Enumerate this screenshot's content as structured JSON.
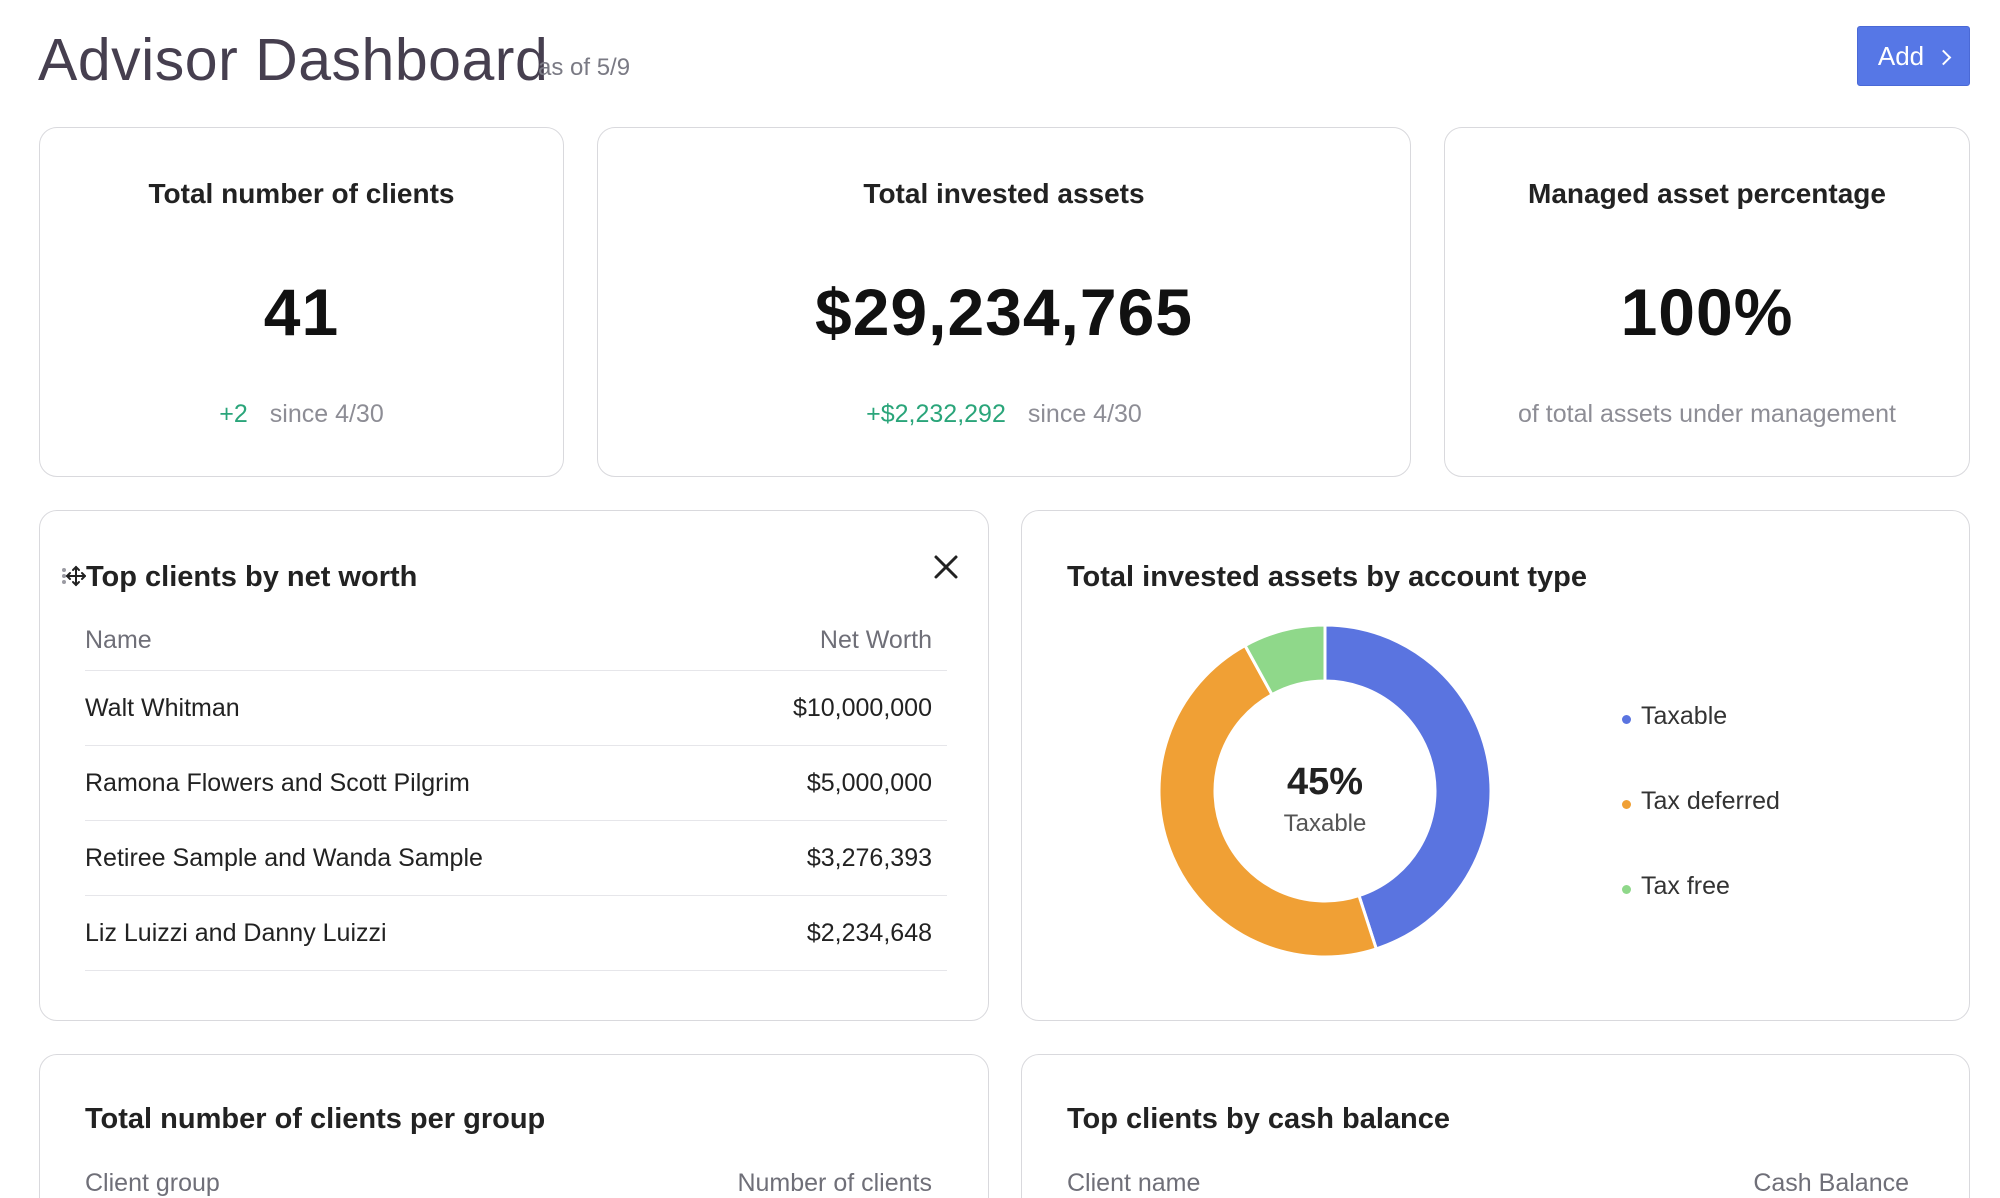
{
  "header": {
    "title": "Advisor Dashboard",
    "as_of": "as of 5/9",
    "add_label": "Add"
  },
  "stats": [
    {
      "title": "Total number of clients",
      "value": "41",
      "delta": "+2",
      "since": "since 4/30"
    },
    {
      "title": "Total invested assets",
      "value": "$29,234,765",
      "delta": "+$2,232,292",
      "since": "since 4/30"
    },
    {
      "title": "Managed asset percentage",
      "value": "100%",
      "note": "of total assets under management"
    }
  ],
  "top_clients": {
    "title": "Top clients by net worth",
    "col_name": "Name",
    "col_value": "Net Worth",
    "rows": [
      {
        "name": "Walt Whitman",
        "value": "$10,000,000"
      },
      {
        "name": "Ramona Flowers and Scott Pilgrim",
        "value": "$5,000,000"
      },
      {
        "name": "Retiree Sample and Wanda Sample",
        "value": "$3,276,393"
      },
      {
        "name": "Liz Luizzi and Danny Luizzi",
        "value": "$2,234,648"
      }
    ]
  },
  "account_type": {
    "title": "Total invested assets by account type",
    "center_pct": "45%",
    "center_label": "Taxable"
  },
  "chart_data": {
    "type": "pie",
    "donut": true,
    "title": "Total invested assets by account type",
    "categories": [
      "Taxable",
      "Tax deferred",
      "Tax free"
    ],
    "values": [
      45,
      47,
      8
    ],
    "colors": [
      "#5a74e0",
      "#f0a035",
      "#8fd88a"
    ],
    "legend": "right"
  },
  "clients_per_group": {
    "title": "Total number of clients per group",
    "col_name": "Client group",
    "col_value": "Number of clients"
  },
  "cash_balance": {
    "title": "Top clients by cash balance",
    "col_name": "Client name",
    "col_value": "Cash Balance"
  },
  "icons": {
    "add_chevron": "chevron-right-icon",
    "drag": "move-icon",
    "close": "close-icon"
  }
}
